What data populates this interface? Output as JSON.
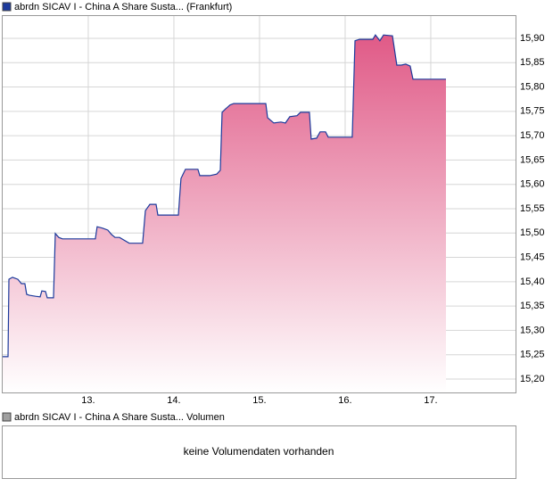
{
  "chart_data": {
    "type": "line",
    "grid": true,
    "series": [
      {
        "name": "abrdn SICAV I - China A Share Susta... (Frankfurt)",
        "color": "#1c3a9c",
        "area_color": "#e05a87",
        "x": [
          11.99,
          12.063,
          12.073,
          12.115,
          12.177,
          12.219,
          12.26,
          12.281,
          12.313,
          12.385,
          12.438,
          12.458,
          12.5,
          12.521,
          12.594,
          12.615,
          12.656,
          12.698,
          12.802,
          13.083,
          13.104,
          13.167,
          13.229,
          13.271,
          13.313,
          13.365,
          13.479,
          13.635,
          13.667,
          13.719,
          13.792,
          13.813,
          14.052,
          14.083,
          14.135,
          14.208,
          14.281,
          14.302,
          14.417,
          14.5,
          14.542,
          14.563,
          14.604,
          14.656,
          14.698,
          14.781,
          15.073,
          15.094,
          15.167,
          15.25,
          15.302,
          15.354,
          15.438,
          15.479,
          15.583,
          15.604,
          15.667,
          15.708,
          15.771,
          15.802,
          16.083,
          16.115,
          16.167,
          16.323,
          16.354,
          16.406,
          16.448,
          16.552,
          16.604,
          16.656,
          16.708,
          16.76,
          16.792,
          16.917,
          17.177
        ],
        "values": [
          15.246,
          15.246,
          15.405,
          15.409,
          15.405,
          15.396,
          15.396,
          15.374,
          15.372,
          15.37,
          15.369,
          15.381,
          15.38,
          15.367,
          15.367,
          15.499,
          15.491,
          15.488,
          15.488,
          15.488,
          15.513,
          15.51,
          15.506,
          15.497,
          15.491,
          15.491,
          15.479,
          15.479,
          15.546,
          15.559,
          15.559,
          15.537,
          15.537,
          15.612,
          15.631,
          15.631,
          15.631,
          15.618,
          15.618,
          15.621,
          15.629,
          15.748,
          15.755,
          15.763,
          15.766,
          15.766,
          15.766,
          15.737,
          15.726,
          15.728,
          15.726,
          15.739,
          15.741,
          15.748,
          15.748,
          15.693,
          15.695,
          15.708,
          15.708,
          15.697,
          15.697,
          15.895,
          15.898,
          15.898,
          15.907,
          15.895,
          15.907,
          15.905,
          15.845,
          15.845,
          15.847,
          15.843,
          15.816,
          15.816,
          15.816
        ]
      }
    ],
    "xlim": [
      11.99,
      17.99
    ],
    "xticks": [
      {
        "value": 13,
        "label": "13."
      },
      {
        "value": 14,
        "label": "14."
      },
      {
        "value": 15,
        "label": "15."
      },
      {
        "value": 16,
        "label": "16."
      },
      {
        "value": 17,
        "label": "17."
      }
    ],
    "ylim": [
      15.1725,
      15.9476
    ],
    "yticks": [
      {
        "value": 15.2,
        "label": "15,20"
      },
      {
        "value": 15.25,
        "label": "15,25"
      },
      {
        "value": 15.3,
        "label": "15,30"
      },
      {
        "value": 15.35,
        "label": "15,35"
      },
      {
        "value": 15.4,
        "label": "15,40"
      },
      {
        "value": 15.45,
        "label": "15,45"
      },
      {
        "value": 15.5,
        "label": "15,50"
      },
      {
        "value": 15.55,
        "label": "15,55"
      },
      {
        "value": 15.6,
        "label": "15,60"
      },
      {
        "value": 15.65,
        "label": "15,65"
      },
      {
        "value": 15.7,
        "label": "15,70"
      },
      {
        "value": 15.75,
        "label": "15,75"
      },
      {
        "value": 15.8,
        "label": "15,80"
      },
      {
        "value": 15.85,
        "label": "15,85"
      },
      {
        "value": 15.9,
        "label": "15,90"
      }
    ]
  },
  "volume_panel": {
    "legend": "abrdn SICAV I - China A Share Susta... Volumen",
    "color": "#a0a0a0",
    "message": "keine Volumendaten vorhanden"
  }
}
